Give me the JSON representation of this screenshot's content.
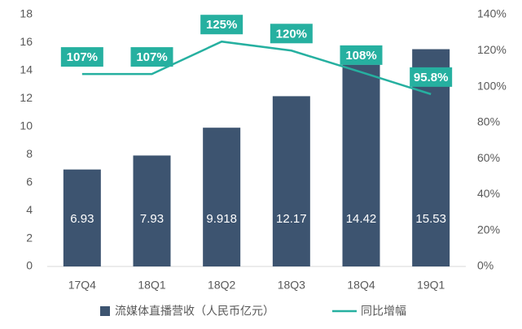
{
  "chart_data": {
    "type": "bar",
    "categories": [
      "17Q4",
      "18Q1",
      "18Q2",
      "18Q3",
      "18Q4",
      "19Q1"
    ],
    "ylim": [
      0,
      18
    ],
    "yticks": [
      0,
      2,
      4,
      6,
      8,
      10,
      12,
      14,
      16,
      18
    ],
    "y2lim": [
      0,
      140
    ],
    "y2ticks": [
      {
        "value": 0,
        "label": "0%"
      },
      {
        "value": 20,
        "label": "20%"
      },
      {
        "value": 40,
        "label": "40%"
      },
      {
        "value": 60,
        "label": "60%"
      },
      {
        "value": 80,
        "label": "80%"
      },
      {
        "value": 100,
        "label": "100%"
      },
      {
        "value": 120,
        "label": "120%"
      },
      {
        "value": 140,
        "label": "140%"
      }
    ],
    "series": [
      {
        "name": "流媒体直播营收（人民币亿元）",
        "type": "bar",
        "color": "#3d5470",
        "values": [
          6.93,
          7.93,
          9.918,
          12.17,
          14.42,
          15.53
        ]
      },
      {
        "name": "同比增幅",
        "type": "line",
        "axis": "y2",
        "color": "#26b0a0",
        "values": [
          107,
          107,
          125,
          120,
          108,
          95.8
        ],
        "value_labels": [
          "107%",
          "107%",
          "125%",
          "120%",
          "108%",
          "95.8%"
        ]
      }
    ]
  }
}
